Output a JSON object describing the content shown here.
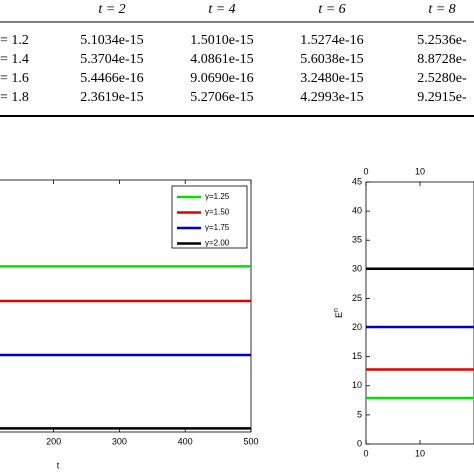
{
  "table": {
    "header": [
      "t = 2",
      "t = 4",
      "t = 6",
      "t = 8"
    ],
    "rows": [
      [
        "= 1.2",
        "5.1034e-15",
        "1.5010e-15",
        "1.5274e-16",
        "5.2536e-"
      ],
      [
        "= 1.4",
        "5.3704e-15",
        "4.0861e-15",
        "5.6038e-15",
        "8.8728e-"
      ],
      [
        "= 1.6",
        "5.4466e-16",
        "9.0690e-16",
        "3.2480e-15",
        "2.5280e-"
      ],
      [
        "= 1.8",
        "2.3619e-15",
        "5.2706e-15",
        "4.2993e-15",
        "9.2915e-"
      ]
    ]
  },
  "chart_data": [
    {
      "type": "line",
      "xlabel": "t",
      "x": [
        0,
        500
      ],
      "xlim": [
        0,
        500
      ],
      "xticks": [
        200,
        300,
        400,
        500
      ],
      "ylim": [
        0,
        35
      ],
      "legend": "upper right",
      "series": [
        {
          "name": "γ=1.25",
          "color": "#00e000",
          "values": [
            23,
            23
          ]
        },
        {
          "name": "γ=1.50",
          "color": "#e00000",
          "values": [
            18.2,
            18.2
          ]
        },
        {
          "name": "γ=1.75",
          "color": "#0000c0",
          "values": [
            10.7,
            10.7
          ]
        },
        {
          "name": "γ=2.00",
          "color": "#000000",
          "values": [
            0.5,
            0.5
          ]
        }
      ]
    },
    {
      "type": "line",
      "ylabel": {
        "base": "E",
        "sup": "n"
      },
      "x": [
        0,
        20
      ],
      "xlim": [
        0,
        20
      ],
      "xticks": [
        0,
        10
      ],
      "ylim": [
        0,
        45
      ],
      "yticks": [
        0,
        5,
        10,
        15,
        20,
        25,
        30,
        35,
        40,
        45
      ],
      "series": [
        {
          "color": "#00e000",
          "values": [
            7.9,
            7.9
          ]
        },
        {
          "color": "#e00000",
          "values": [
            12.8,
            12.8
          ]
        },
        {
          "color": "#0000c0",
          "values": [
            20.1,
            20.1
          ]
        },
        {
          "color": "#000000",
          "values": [
            30.1,
            30.1
          ]
        }
      ]
    }
  ]
}
